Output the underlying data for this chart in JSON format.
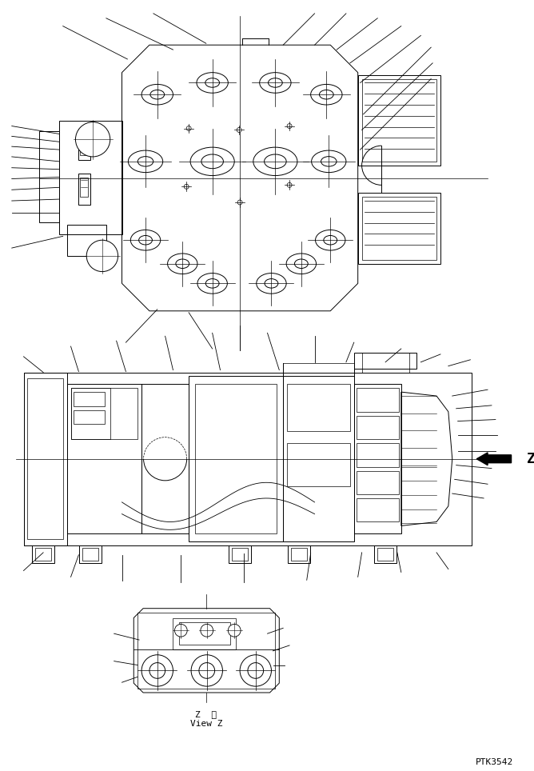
{
  "bg_color": "#ffffff",
  "line_color": "#000000",
  "fig_width": 6.68,
  "fig_height": 9.64,
  "dpi": 100,
  "watermark": "PTK3542",
  "view_label_1": "Z  視",
  "view_label_2": "View Z"
}
